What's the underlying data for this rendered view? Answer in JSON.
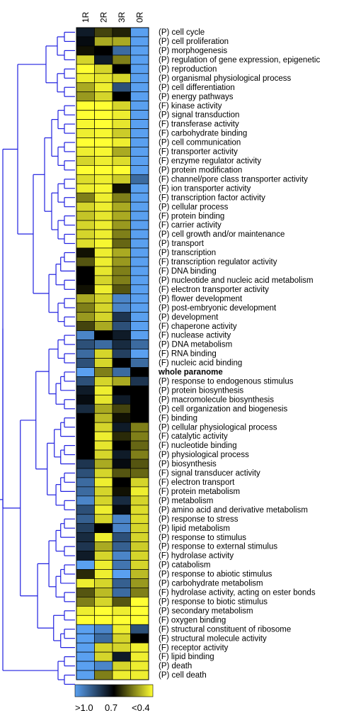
{
  "chart_data": {
    "type": "heatmap",
    "columns": [
      "1R",
      "2R",
      "3R",
      "0R"
    ],
    "color_scale": {
      "low_color": "#5AA0F0",
      "mid_color": "#000000",
      "high_color": "#FFFF33",
      "labels": [
        ">1.0",
        "0.7",
        "<0.4"
      ],
      "stops": [
        1.0,
        0.7,
        0.4
      ]
    },
    "rows": [
      {
        "label": "(P) cell cycle",
        "values": [
          0.75,
          0.62,
          0.66,
          1.0
        ]
      },
      {
        "label": "(P) cell proliferation",
        "values": [
          0.72,
          0.5,
          0.5,
          1.0
        ]
      },
      {
        "label": "(P) morphogenesis",
        "values": [
          0.68,
          0.7,
          0.9,
          1.0
        ]
      },
      {
        "label": "(P) regulation of gene expression, epigenetic",
        "values": [
          0.45,
          0.75,
          0.55,
          1.0
        ]
      },
      {
        "label": "(P) reproduction",
        "values": [
          0.4,
          0.45,
          0.7,
          1.0
        ]
      },
      {
        "label": "(P) organismal physiological process",
        "values": [
          0.42,
          0.43,
          0.45,
          1.0
        ]
      },
      {
        "label": "(P) cell differentiation",
        "values": [
          0.5,
          0.42,
          0.85,
          1.0
        ]
      },
      {
        "label": "(P) energy pathways",
        "values": [
          0.52,
          0.45,
          0.7,
          1.0
        ]
      },
      {
        "label": "(F) kinase activity",
        "values": [
          0.4,
          0.4,
          0.45,
          1.0
        ]
      },
      {
        "label": "(P) signal transduction",
        "values": [
          0.4,
          0.4,
          0.42,
          1.0
        ]
      },
      {
        "label": "(F) transferase activity",
        "values": [
          0.41,
          0.4,
          0.43,
          1.0
        ]
      },
      {
        "label": "(F) carbohydrate binding",
        "values": [
          0.42,
          0.41,
          0.46,
          1.0
        ]
      },
      {
        "label": "(P) cell communication",
        "values": [
          0.4,
          0.4,
          0.42,
          1.0
        ]
      },
      {
        "label": "(F) transporter activity",
        "values": [
          0.42,
          0.41,
          0.5,
          1.0
        ]
      },
      {
        "label": "(F) enzyme regulator activity",
        "values": [
          0.45,
          0.42,
          0.44,
          1.0
        ]
      },
      {
        "label": "(P) protein modification",
        "values": [
          0.4,
          0.4,
          0.4,
          1.0
        ]
      },
      {
        "label": "(F) channel/pore class transporter activity",
        "values": [
          0.44,
          0.42,
          0.46,
          0.9
        ]
      },
      {
        "label": "(F) ion transporter activity",
        "values": [
          0.42,
          0.41,
          0.68,
          1.0
        ]
      },
      {
        "label": "(F) transcription factor activity",
        "values": [
          0.55,
          0.42,
          0.55,
          1.0
        ]
      },
      {
        "label": "(P) cellular process",
        "values": [
          0.45,
          0.42,
          0.5,
          1.0
        ]
      },
      {
        "label": "(F) protein binding",
        "values": [
          0.47,
          0.43,
          0.5,
          1.0
        ]
      },
      {
        "label": "(F) carrier activity",
        "values": [
          0.45,
          0.42,
          0.52,
          1.0
        ]
      },
      {
        "label": "(P) cell growth and/or maintenance",
        "values": [
          0.45,
          0.42,
          0.55,
          1.0
        ]
      },
      {
        "label": "(P) transport",
        "values": [
          0.44,
          0.41,
          0.58,
          1.0
        ]
      },
      {
        "label": "(P) transcription",
        "values": [
          0.68,
          0.42,
          0.5,
          1.0
        ]
      },
      {
        "label": "(F) transcription regulator activity",
        "values": [
          0.6,
          0.42,
          0.52,
          1.0
        ]
      },
      {
        "label": "(F) DNA binding",
        "values": [
          0.7,
          0.43,
          0.55,
          1.0
        ]
      },
      {
        "label": "(P) nucleotide and nucleic acid metabolism",
        "values": [
          0.7,
          0.45,
          0.55,
          1.0
        ]
      },
      {
        "label": "(F) electron transporter activity",
        "values": [
          0.68,
          0.42,
          0.6,
          1.0
        ]
      },
      {
        "label": "(P) flower development",
        "values": [
          0.5,
          0.45,
          0.95,
          1.0
        ]
      },
      {
        "label": "(P) post-embryonic development",
        "values": [
          0.55,
          0.45,
          0.95,
          1.0
        ]
      },
      {
        "label": "(P) development",
        "values": [
          0.52,
          0.45,
          0.8,
          1.0
        ]
      },
      {
        "label": "(F) chaperone activity",
        "values": [
          0.62,
          0.5,
          0.85,
          1.0
        ]
      },
      {
        "label": "(F) nuclease activity",
        "values": [
          0.95,
          0.7,
          0.75,
          1.0
        ]
      },
      {
        "label": "(P) DNA metabolism",
        "values": [
          0.85,
          0.9,
          0.78,
          0.9
        ]
      },
      {
        "label": "(F) RNA binding",
        "values": [
          0.9,
          0.45,
          0.82,
          1.0
        ]
      },
      {
        "label": "(F) nucleic acid binding",
        "values": [
          0.85,
          0.45,
          0.7,
          0.9
        ]
      },
      {
        "label": "whole paranome",
        "bold": true,
        "values": [
          1.0,
          0.55,
          0.9,
          0.7
        ]
      },
      {
        "label": "(P) response to endogenous stimulus",
        "values": [
          0.85,
          0.45,
          0.5,
          0.8
        ]
      },
      {
        "label": "(P) protein biosynthesis",
        "values": [
          0.75,
          0.42,
          0.7,
          0.7
        ]
      },
      {
        "label": "(P) macromolecule biosynthesis",
        "values": [
          0.72,
          0.43,
          0.75,
          0.7
        ]
      },
      {
        "label": "(P) cell organization and biogenesis",
        "values": [
          0.78,
          0.5,
          0.62,
          0.7
        ]
      },
      {
        "label": "(F) binding",
        "values": [
          0.7,
          0.48,
          0.68,
          0.7
        ]
      },
      {
        "label": "(P) cellular physiological process",
        "values": [
          0.7,
          0.45,
          0.75,
          0.55
        ]
      },
      {
        "label": "(F) catalytic activity",
        "values": [
          0.7,
          0.42,
          0.65,
          0.55
        ]
      },
      {
        "label": "(F) nucleotide binding",
        "values": [
          0.7,
          0.43,
          0.7,
          0.58
        ]
      },
      {
        "label": "(P) physiological process",
        "values": [
          0.7,
          0.45,
          0.75,
          0.55
        ]
      },
      {
        "label": "(P) biosynthesis",
        "values": [
          0.8,
          0.5,
          0.72,
          0.6
        ]
      },
      {
        "label": "(F) signal transducer activity",
        "values": [
          0.85,
          0.45,
          0.6,
          0.58
        ]
      },
      {
        "label": "(F) electron transport",
        "values": [
          0.9,
          0.42,
          0.7,
          0.45
        ]
      },
      {
        "label": "(F) protein metabolism",
        "values": [
          0.9,
          0.45,
          0.68,
          0.42
        ]
      },
      {
        "label": "(P) metabolism",
        "values": [
          0.95,
          0.45,
          0.78,
          0.45
        ]
      },
      {
        "label": "(P) amino acid and derivative metabolism",
        "values": [
          0.85,
          0.42,
          0.72,
          0.44
        ]
      },
      {
        "label": "(P) response to stress",
        "values": [
          0.88,
          0.45,
          0.95,
          0.44
        ]
      },
      {
        "label": "(P) lipid metabolism",
        "values": [
          0.82,
          0.7,
          0.95,
          0.45
        ]
      },
      {
        "label": "(P) response to stimulus",
        "values": [
          0.78,
          0.42,
          0.85,
          0.45
        ]
      },
      {
        "label": "(P) response to external stimulus",
        "values": [
          0.8,
          0.5,
          0.88,
          0.46
        ]
      },
      {
        "label": "(F) hydrolase activity",
        "values": [
          0.75,
          0.45,
          0.95,
          0.45
        ]
      },
      {
        "label": "(P) catabolism",
        "values": [
          1.0,
          0.42,
          0.92,
          0.45
        ]
      },
      {
        "label": "(P) response to abiotic stimulus",
        "values": [
          0.65,
          0.42,
          1.0,
          0.48
        ]
      },
      {
        "label": "(P) carbohydrate metabolism",
        "values": [
          0.42,
          0.45,
          0.88,
          0.52
        ]
      },
      {
        "label": "(F) hydrolase activity, acting on ester bonds",
        "values": [
          0.6,
          0.48,
          0.9,
          0.55
        ]
      },
      {
        "label": "(P) response to biotic stimulus",
        "values": [
          0.55,
          0.45,
          0.6,
          0.4
        ]
      },
      {
        "label": "(P) secondary metabolism",
        "values": [
          0.42,
          0.4,
          0.42,
          0.4
        ]
      },
      {
        "label": "(F) oxygen binding",
        "values": [
          0.4,
          0.4,
          0.4,
          0.4
        ]
      },
      {
        "label": "(F) structural constituent of ribosome",
        "values": [
          1.0,
          0.95,
          0.42,
          0.85
        ]
      },
      {
        "label": "(F) structural molecule activity",
        "values": [
          1.0,
          0.9,
          0.45,
          0.7
        ]
      },
      {
        "label": "(F) receptor activity",
        "values": [
          1.0,
          0.45,
          0.45,
          0.42
        ]
      },
      {
        "label": "(F) lipid binding",
        "values": [
          1.0,
          0.45,
          0.75,
          0.42
        ]
      },
      {
        "label": "(P) death",
        "values": [
          1.0,
          0.95,
          0.45,
          0.42
        ]
      },
      {
        "label": "(P) cell death",
        "values": [
          1.0,
          0.55,
          0.42,
          0.42
        ]
      }
    ],
    "dendrogram": {
      "color": "#2020E0",
      "groups": [
        [
          0,
          1
        ],
        [
          2,
          3
        ],
        [
          4,
          5
        ],
        [
          6,
          7
        ],
        [
          8,
          15
        ],
        [
          16,
          23
        ],
        [
          24,
          28
        ],
        [
          29,
          32
        ],
        [
          33,
          36
        ],
        [
          37,
          41
        ],
        [
          42,
          47
        ],
        [
          48,
          52
        ],
        [
          53,
          57
        ],
        [
          58,
          62
        ],
        [
          63,
          64
        ],
        [
          65,
          67
        ],
        [
          68,
          71
        ]
      ]
    }
  }
}
